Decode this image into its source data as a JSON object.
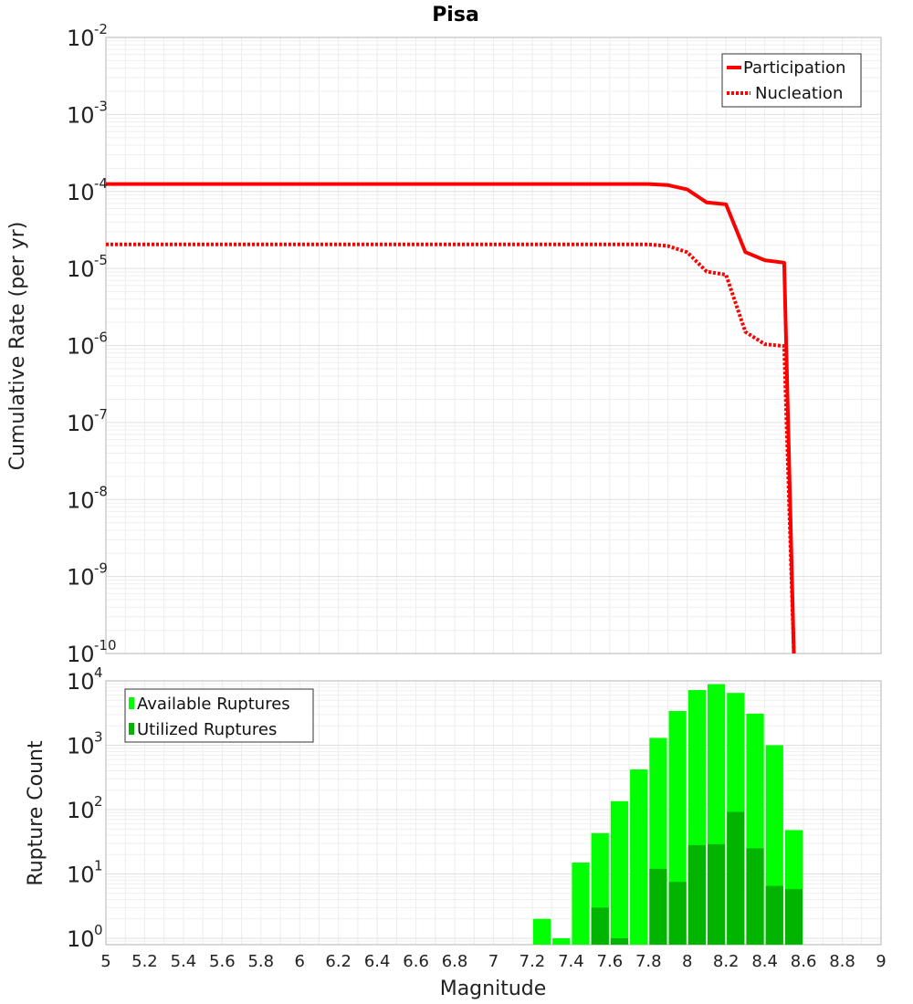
{
  "chart_data": [
    {
      "type": "line",
      "title": "Pisa",
      "xlabel": "Magnitude",
      "ylabel": "Cumulative Rate (per yr)",
      "xlim": [
        5,
        9
      ],
      "ylim_log10": [
        -10,
        -2
      ],
      "yscale": "log",
      "ytick_exponents": [
        -2,
        -3,
        -4,
        -5,
        -6,
        -7,
        -8,
        -9,
        -10
      ],
      "grid": true,
      "legend_position": "top-right",
      "series": [
        {
          "name": "Participation",
          "color": "#ff0000",
          "style": "solid",
          "x": [
            5.0,
            7.8,
            7.9,
            8.0,
            8.1,
            8.2,
            8.3,
            8.4,
            8.5,
            8.55
          ],
          "y": [
            0.000125,
            0.000125,
            0.000121,
            0.000106,
            7.2e-05,
            6.8e-05,
            1.63e-05,
            1.28e-05,
            1.19e-05,
            1e-10
          ]
        },
        {
          "name": "Nucleation",
          "color": "#ff0000",
          "style": "dotted",
          "x": [
            5.0,
            7.8,
            7.9,
            8.0,
            8.1,
            8.2,
            8.3,
            8.4,
            8.5,
            8.55
          ],
          "y": [
            2.05e-05,
            2.05e-05,
            1.96e-05,
            1.62e-05,
            9.1e-06,
            8.3e-06,
            1.5e-06,
            1.04e-06,
            9.8e-07,
            1e-10
          ]
        }
      ]
    },
    {
      "type": "bar",
      "xlabel": "Magnitude",
      "ylabel": "Rupture Count",
      "xlim": [
        5,
        9
      ],
      "ylim_log10": [
        -0.1,
        4.0
      ],
      "yscale": "log",
      "ytick_exponents": [
        4,
        3,
        2,
        1,
        0
      ],
      "xticks": [
        "5",
        "5.2",
        "5.4",
        "5.6",
        "5.8",
        "6",
        "6.2",
        "6.4",
        "6.6",
        "6.8",
        "7",
        "7.2",
        "7.4",
        "7.6",
        "7.8",
        "8",
        "8.2",
        "8.4",
        "8.6",
        "8.8",
        "9"
      ],
      "bin_width": 0.1,
      "grid": true,
      "legend_position": "top-left",
      "series": [
        {
          "name": "Available Ruptures",
          "color": "#00ff00",
          "bin_centers": [
            7.25,
            7.35,
            7.45,
            7.55,
            7.65,
            7.75,
            7.85,
            7.95,
            8.05,
            8.15,
            8.25,
            8.35,
            8.45,
            8.55
          ],
          "values": [
            2,
            1,
            15,
            43,
            135,
            420,
            1300,
            3400,
            7200,
            8900,
            6500,
            3100,
            1000,
            48
          ]
        },
        {
          "name": "Utilized Ruptures",
          "color": "#00b400",
          "bin_centers": [
            7.55,
            7.65,
            7.85,
            7.95,
            8.05,
            8.15,
            8.25,
            8.35,
            8.45,
            8.55
          ],
          "values": [
            3,
            1,
            12,
            7.5,
            28,
            29,
            92,
            25,
            6.5,
            5.8
          ]
        }
      ]
    }
  ]
}
